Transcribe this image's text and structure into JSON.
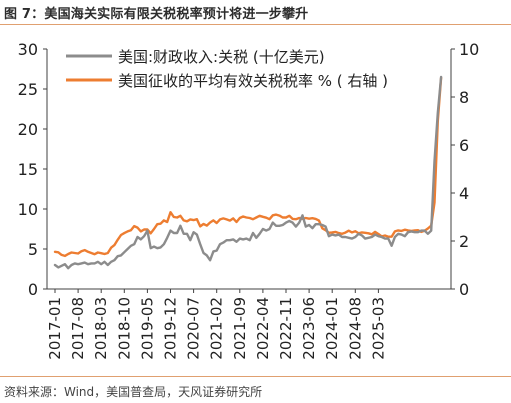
{
  "figure": {
    "title": "图 7：美国海关实际有限关税税率预计将进一步攀升",
    "source": "资料来源：Wind，美国普查局，天风证券研究所"
  },
  "colors": {
    "tariff_series": "#8c8c8c",
    "rate_series": "#ed7d31",
    "axis": "#404040",
    "text": "#222222",
    "rule": "#e0a070"
  },
  "chart_data": {
    "type": "line",
    "grid": false,
    "legend_position": "top-left",
    "x_ticks": [
      "2017-01",
      "2017-08",
      "2018-03",
      "2018-10",
      "2019-05",
      "2019-12",
      "2020-07",
      "2021-02",
      "2021-09",
      "2022-04",
      "2022-11",
      "2023-06",
      "2024-01",
      "2024-08",
      "2025-03"
    ],
    "y_left": {
      "ylim": [
        0,
        30
      ],
      "ticks": [
        0,
        5,
        10,
        15,
        20,
        25,
        30
      ]
    },
    "y_right": {
      "ylim": [
        0,
        10
      ],
      "ticks": [
        0,
        2,
        4,
        6,
        8,
        10
      ]
    },
    "x_start": "2017-01",
    "series": [
      {
        "name": "美国:财政收入:关税 (十亿美元)",
        "axis": "left",
        "color": "#8c8c8c",
        "values": [
          3.0,
          2.7,
          2.9,
          3.1,
          2.6,
          3.0,
          3.2,
          3.1,
          3.2,
          3.3,
          3.1,
          3.2,
          3.2,
          3.4,
          3.1,
          3.4,
          3.0,
          3.4,
          3.6,
          4.1,
          4.2,
          4.6,
          5.0,
          5.4,
          5.6,
          6.5,
          6.2,
          6.6,
          7.3,
          5.1,
          5.3,
          5.1,
          5.2,
          5.6,
          6.4,
          7.3,
          7.0,
          7.0,
          7.9,
          6.9,
          6.9,
          6.1,
          7.1,
          6.8,
          5.6,
          4.5,
          4.2,
          3.6,
          4.7,
          4.8,
          5.6,
          5.8,
          6.1,
          6.1,
          6.2,
          5.9,
          6.3,
          6.2,
          6.3,
          6.1,
          7.0,
          6.4,
          6.9,
          7.5,
          7.3,
          7.5,
          8.3,
          7.9,
          7.9,
          8.0,
          8.3,
          8.5,
          8.3,
          7.8,
          8.3,
          9.2,
          7.8,
          8.0,
          7.6,
          8.1,
          8.1,
          8.0,
          7.8,
          6.6,
          6.8,
          6.7,
          6.8,
          6.5,
          6.5,
          6.4,
          6.3,
          6.5,
          6.9,
          6.7,
          6.3,
          6.4,
          6.5,
          6.8,
          6.6,
          6.5,
          6.3,
          6.3,
          5.4,
          6.5,
          6.9,
          6.8,
          6.6,
          7.1,
          7.2,
          7.1,
          7.1,
          7.3,
          7.3,
          6.9,
          7.3,
          16.0,
          22.0,
          26.5
        ]
      },
      {
        "name": "美国征收的平均有效关税税率 % ( 右轴 )",
        "axis": "right",
        "color": "#ed7d31",
        "values": [
          1.55,
          1.53,
          1.42,
          1.38,
          1.46,
          1.52,
          1.5,
          1.48,
          1.57,
          1.62,
          1.55,
          1.5,
          1.45,
          1.52,
          1.49,
          1.46,
          1.5,
          1.72,
          1.83,
          2.05,
          2.25,
          2.33,
          2.4,
          2.45,
          2.62,
          2.56,
          2.4,
          2.48,
          2.48,
          2.32,
          2.5,
          2.7,
          2.72,
          2.86,
          2.79,
          3.2,
          3.0,
          2.98,
          3.05,
          2.86,
          2.82,
          2.9,
          2.87,
          2.91,
          2.61,
          2.71,
          2.64,
          2.77,
          2.86,
          2.75,
          2.9,
          2.94,
          2.9,
          2.85,
          2.94,
          2.79,
          2.96,
          3.02,
          2.98,
          2.96,
          2.91,
          2.98,
          3.05,
          3.01,
          2.97,
          2.91,
          3.07,
          3.1,
          3.06,
          2.98,
          2.98,
          3.05,
          2.92,
          2.91,
          2.96,
          2.92,
          2.96,
          2.93,
          2.95,
          2.92,
          2.85,
          2.53,
          2.45,
          2.34,
          2.36,
          2.38,
          2.33,
          2.3,
          2.35,
          2.43,
          2.36,
          2.41,
          2.32,
          2.36,
          2.34,
          2.32,
          2.28,
          2.38,
          2.29,
          2.19,
          2.23,
          2.18,
          2.18,
          2.4,
          2.44,
          2.42,
          2.47,
          2.44,
          2.42,
          2.44,
          2.45,
          2.38,
          2.43,
          2.52,
          2.64,
          3.6,
          7.0,
          8.8
        ]
      }
    ]
  }
}
